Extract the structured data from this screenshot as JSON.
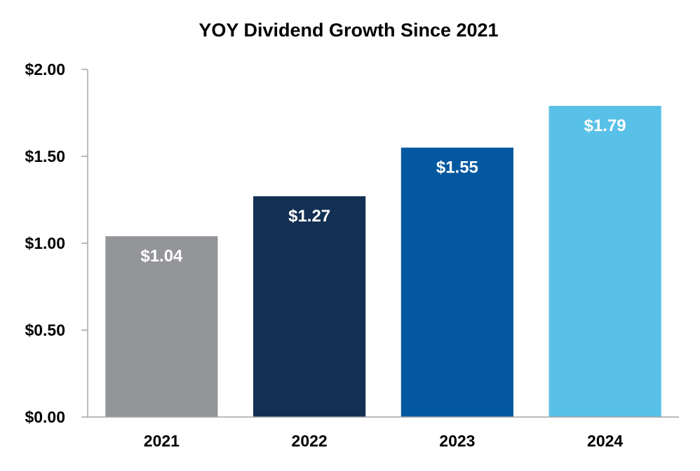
{
  "chart_data": {
    "type": "bar",
    "title": "YOY Dividend Growth Since 2021",
    "xlabel": "",
    "ylabel": "",
    "categories": [
      "2021",
      "2022",
      "2023",
      "2024"
    ],
    "values": [
      1.04,
      1.27,
      1.55,
      1.79
    ],
    "data_labels": [
      "$1.04",
      "$1.27",
      "$1.55",
      "$1.79"
    ],
    "bar_colors": [
      "#939598",
      "#132f53",
      "#0458a0",
      "#59c0e8"
    ],
    "ylim": [
      0,
      2
    ],
    "yticks": [
      0,
      0.5,
      1,
      1.5,
      2
    ],
    "ytick_labels": [
      "$0.00",
      "$0.50",
      "$1.00",
      "$1.50",
      "$2.00"
    ],
    "grid": false,
    "legend": "none",
    "axis_color": "#a6a6a6"
  }
}
